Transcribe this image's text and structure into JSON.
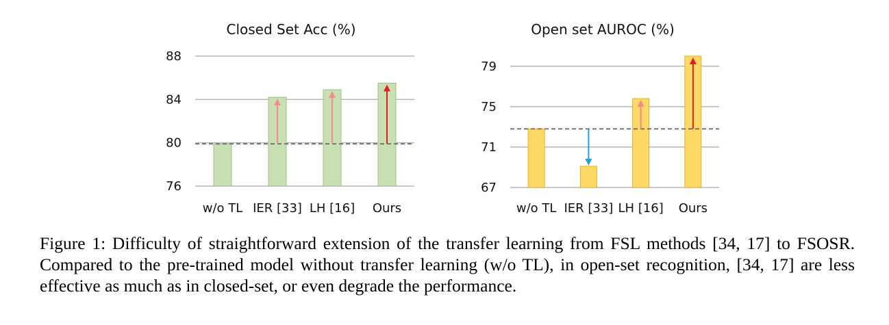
{
  "chart_data": [
    {
      "type": "bar",
      "title": "Closed Set Acc (%)",
      "categories": [
        "w/o TL",
        "IER [33]",
        "LH [16]",
        "Ours"
      ],
      "values": [
        79.9,
        84.2,
        84.9,
        85.5
      ],
      "ylim": [
        76,
        88
      ],
      "yticks": [
        76,
        80,
        84,
        88
      ],
      "baseline": 79.9,
      "bar_color": "#c8e0b4",
      "bar_edge": "#9cc08a",
      "arrows": [
        {
          "category": "IER [33]",
          "color": "#f28b8b"
        },
        {
          "category": "LH [16]",
          "color": "#f28b8b"
        },
        {
          "category": "Ours",
          "color": "#e02020"
        }
      ]
    },
    {
      "type": "bar",
      "title": "Open set AUROC (%)",
      "categories": [
        "w/o TL",
        "IER [33]",
        "LH [16]",
        "Ours"
      ],
      "values": [
        72.8,
        69.1,
        75.8,
        80.0
      ],
      "ylim": [
        67,
        80
      ],
      "yticks": [
        67,
        71,
        75,
        79
      ],
      "baseline": 72.8,
      "bar_color": "#ffd966",
      "bar_edge": "#e0b030",
      "arrows": [
        {
          "category": "IER [33]",
          "color": "#2a9fd6"
        },
        {
          "category": "LH [16]",
          "color": "#f28b8b"
        },
        {
          "category": "Ours",
          "color": "#e02020"
        }
      ]
    }
  ],
  "caption": "Figure 1: Difficulty of straightforward extension of the transfer learning from FSL methods [34, 17] to FSOSR. Compared to the pre-trained model without transfer learning (w/o TL), in open-set recognition, [34, 17] are less effective as much as in closed-set, or even degrade the performance."
}
